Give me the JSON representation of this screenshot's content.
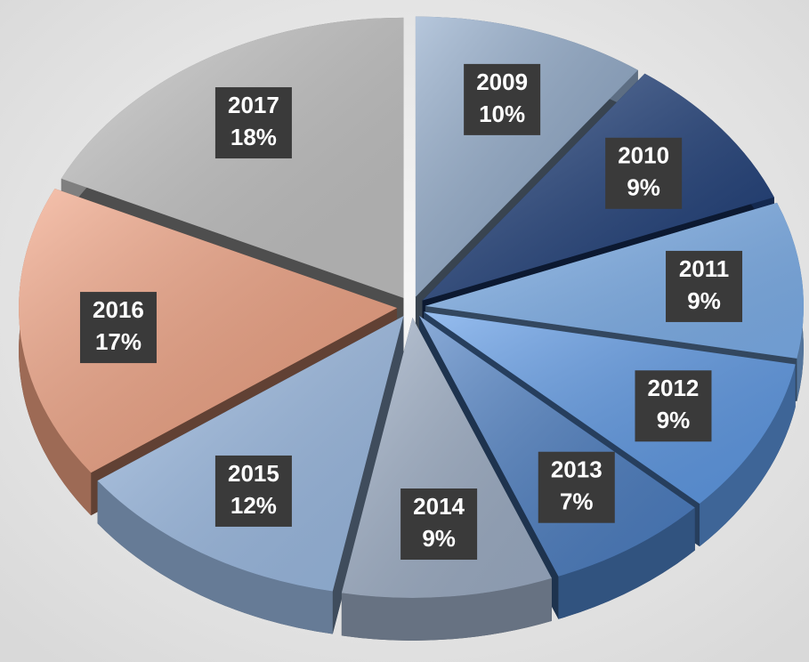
{
  "chart_data": {
    "type": "pie",
    "categories": [
      "2009",
      "2010",
      "2011",
      "2012",
      "2013",
      "2014",
      "2015",
      "2016",
      "2017"
    ],
    "values": [
      10,
      9,
      9,
      9,
      7,
      9,
      12,
      17,
      18
    ],
    "value_labels": [
      "10%",
      "9%",
      "9%",
      "9%",
      "7%",
      "9%",
      "12%",
      "17%",
      "18%"
    ],
    "colors": [
      "#8fa9c9",
      "#1f3f7a",
      "#7fb2ee",
      "#5f9be8",
      "#4c7fc4",
      "#9fb0c8",
      "#9dbde6",
      "#f2a383",
      "#c4c4c4"
    ]
  }
}
